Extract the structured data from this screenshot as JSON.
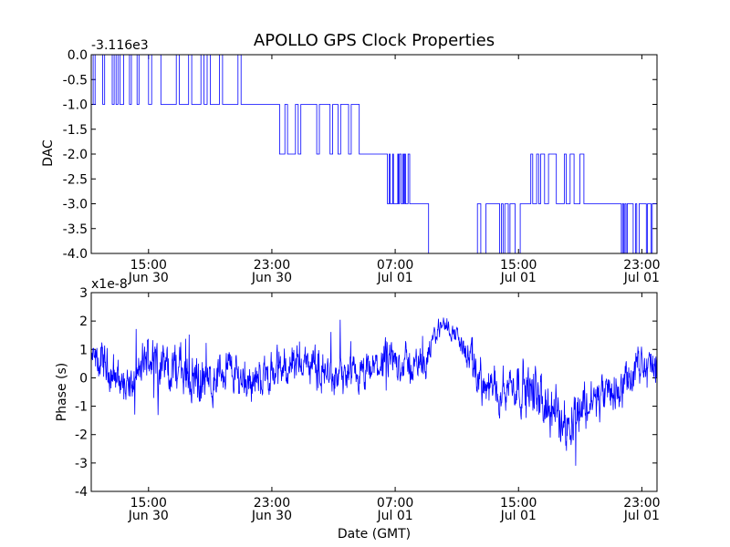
{
  "figure": {
    "title": "APOLLO GPS Clock Properties",
    "xlabel": "Date (GMT)",
    "series_color": "#0000ff",
    "axis_color": "#000000",
    "background": "#ffffff"
  },
  "chart_data": [
    {
      "type": "line",
      "name": "DAC",
      "title": "APOLLO GPS Clock Properties",
      "ylabel": "DAC",
      "offset_label": "-3.116e3",
      "xlim": [
        "2015-06-30 11:17",
        "2015-07-01 23:59"
      ],
      "ylim": [
        -4.0,
        0.0
      ],
      "yticks": [
        0.0,
        -0.5,
        -1.0,
        -1.5,
        -2.0,
        -2.5,
        -3.0,
        -3.5,
        -4.0
      ],
      "ytick_labels": [
        "0.0",
        "-0.5",
        "-1.0",
        "-1.5",
        "-2.0",
        "-2.5",
        "-3.0",
        "-3.5",
        "-4.0"
      ],
      "xticks": [
        {
          "value": "2015-06-30 15:00",
          "time": "15:00",
          "date": "Jun 30"
        },
        {
          "value": "2015-06-30 23:00",
          "time": "23:00",
          "date": "Jun 30"
        },
        {
          "value": "2015-07-01 07:00",
          "time": "07:00",
          "date": "Jul 01"
        },
        {
          "value": "2015-07-01 15:00",
          "time": "15:00",
          "date": "Jul 01"
        },
        {
          "value": "2015-07-01 23:00",
          "time": "23:00",
          "date": "Jul 01"
        }
      ],
      "grid": false,
      "style": "step",
      "levels": [
        {
          "start": "2015-06-30 11:17",
          "end": "2015-06-30 15:00",
          "base": 0.0,
          "alt": -1.0
        },
        {
          "start": "2015-06-30 15:00",
          "end": "2015-06-30 21:00",
          "base": -1.0,
          "alt": 0.0
        },
        {
          "start": "2015-06-30 21:00",
          "end": "2015-06-30 23:30",
          "base": -1.0,
          "alt": null
        },
        {
          "start": "2015-06-30 23:30",
          "end": "2015-07-01 04:40",
          "base": -1.0,
          "alt": -2.0
        },
        {
          "start": "2015-07-01 04:40",
          "end": "2015-07-01 06:30",
          "base": -2.0,
          "alt": null
        },
        {
          "start": "2015-07-01 06:30",
          "end": "2015-07-01 08:10",
          "base": -3.0,
          "alt": -2.0
        },
        {
          "start": "2015-07-01 08:10",
          "end": "2015-07-01 09:10",
          "base": -3.0,
          "alt": null
        },
        {
          "start": "2015-07-01 09:10",
          "end": "2015-07-01 12:20",
          "base": -4.0,
          "alt": null
        },
        {
          "start": "2015-07-01 12:20",
          "end": "2015-07-01 15:40",
          "base": -3.0,
          "alt": -4.0
        },
        {
          "start": "2015-07-01 15:40",
          "end": "2015-07-01 19:30",
          "base": -3.0,
          "alt": -2.0
        },
        {
          "start": "2015-07-01 19:30",
          "end": "2015-07-01 21:40",
          "base": -3.0,
          "alt": null
        },
        {
          "start": "2015-07-01 21:40",
          "end": "2015-07-01 23:59",
          "base": -3.0,
          "alt": -4.0
        }
      ]
    },
    {
      "type": "line",
      "name": "Phase",
      "ylabel": "Phase (s)",
      "offset_label": "x1e-8",
      "xlabel": "Date (GMT)",
      "xlim": [
        "2015-06-30 11:17",
        "2015-07-01 23:59"
      ],
      "ylim": [
        -4,
        3
      ],
      "yticks": [
        3,
        2,
        1,
        0,
        -1,
        -2,
        -3,
        -4
      ],
      "ytick_labels": [
        "3",
        "2",
        "1",
        "0",
        "-1",
        "-2",
        "-3",
        "-4"
      ],
      "xticks": [
        {
          "value": "2015-06-30 15:00",
          "time": "15:00",
          "date": "Jun 30"
        },
        {
          "value": "2015-06-30 23:00",
          "time": "23:00",
          "date": "Jun 30"
        },
        {
          "value": "2015-07-01 07:00",
          "time": "07:00",
          "date": "Jul 01"
        },
        {
          "value": "2015-07-01 15:00",
          "time": "15:00",
          "date": "Jul 01"
        },
        {
          "value": "2015-07-01 23:00",
          "time": "23:00",
          "date": "Jul 01"
        }
      ],
      "grid": false,
      "x": [
        "2015-06-30 11:17",
        "2015-06-30 12:00",
        "2015-06-30 13:00",
        "2015-06-30 14:00",
        "2015-06-30 15:00",
        "2015-06-30 16:00",
        "2015-06-30 17:00",
        "2015-06-30 18:00",
        "2015-06-30 19:00",
        "2015-06-30 20:00",
        "2015-06-30 21:00",
        "2015-06-30 22:00",
        "2015-06-30 23:00",
        "2015-07-01 00:00",
        "2015-07-01 01:00",
        "2015-07-01 02:00",
        "2015-07-01 03:00",
        "2015-07-01 04:00",
        "2015-07-01 05:00",
        "2015-07-01 06:00",
        "2015-07-01 07:00",
        "2015-07-01 08:00",
        "2015-07-01 09:00",
        "2015-07-01 10:00",
        "2015-07-01 11:00",
        "2015-07-01 12:00",
        "2015-07-01 13:00",
        "2015-07-01 14:00",
        "2015-07-01 15:00",
        "2015-07-01 16:00",
        "2015-07-01 17:00",
        "2015-07-01 18:00",
        "2015-07-01 19:00",
        "2015-07-01 20:00",
        "2015-07-01 21:00",
        "2015-07-01 22:00",
        "2015-07-01 23:00",
        "2015-07-01 23:59"
      ],
      "trend": [
        0.6,
        0.5,
        0.0,
        -0.3,
        0.8,
        0.4,
        0.3,
        0.0,
        -0.2,
        0.4,
        0.0,
        -0.1,
        0.2,
        0.4,
        0.6,
        0.3,
        0.0,
        0.0,
        0.0,
        0.5,
        0.6,
        0.4,
        0.6,
        2.0,
        1.5,
        0.4,
        -0.5,
        -0.3,
        -0.2,
        -0.5,
        -1.2,
        -1.5,
        -1.0,
        -0.8,
        -0.6,
        -0.2,
        0.5,
        0.3
      ],
      "noise_amplitude": [
        0.5,
        0.6,
        0.6,
        0.6,
        0.7,
        0.7,
        0.8,
        0.8,
        0.7,
        0.7,
        0.7,
        0.6,
        0.6,
        0.6,
        0.6,
        0.6,
        0.6,
        0.6,
        0.6,
        0.6,
        0.6,
        0.6,
        0.4,
        0.3,
        0.3,
        0.6,
        0.7,
        0.7,
        0.7,
        0.8,
        0.9,
        0.9,
        0.8,
        0.7,
        0.7,
        0.6,
        0.6,
        0.6
      ]
    }
  ]
}
